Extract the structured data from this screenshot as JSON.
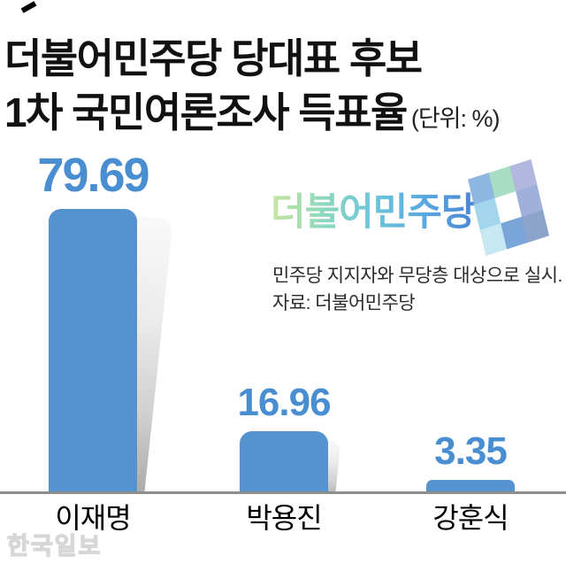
{
  "header": {
    "title_line1": "더불어민주당 당대표 후보",
    "title_line2": "1차 국민여론조사 득표율",
    "unit_note": "(단위: %)"
  },
  "logo": {
    "text": "더불어민주당",
    "text_gradient": [
      "#c6e79e",
      "#8fd8bd",
      "#6cc6da",
      "#5aa8e0",
      "#4b86d4"
    ],
    "flag_icon": "party-flag-icon",
    "flag_tiles": [
      "#8db6e2",
      "#a9dcc4",
      "#b2b7de",
      "#a3d6ec",
      "#ffffff",
      "#9fb0dc",
      "#c8e9f3",
      "#7aa5d8",
      "#8ca4ca"
    ]
  },
  "notes": {
    "line1": "민주당 지지자와 무당층 대상으로 실시.",
    "line2": "자료: 더불어민주당"
  },
  "watermark": "한국일보",
  "colors": {
    "bar": "#5592d0",
    "value_text": "#4a8ed2",
    "axis_line": "#8e8e8e",
    "title_text": "#111111"
  },
  "chart_data": {
    "type": "bar",
    "title": "더불어민주당 당대표 후보 1차 국민여론조사 득표율",
    "unit": "%",
    "categories": [
      "이재명",
      "박용진",
      "강훈식"
    ],
    "values": [
      79.69,
      16.96,
      3.35
    ],
    "value_labels": [
      "79.69",
      "16.96",
      "3.35"
    ],
    "ylim": [
      0,
      100
    ],
    "grid": false,
    "legend": false,
    "emphasized_category": "이재명"
  }
}
